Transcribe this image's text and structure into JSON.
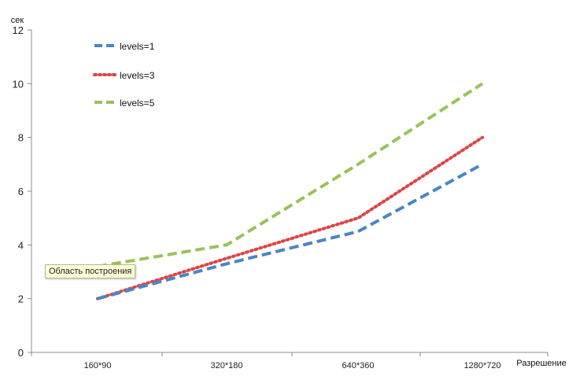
{
  "chart_data": {
    "type": "line",
    "title": "",
    "xlabel": "Разрешение",
    "ylabel": "сек",
    "categories": [
      "160*90",
      "320*180",
      "640*360",
      "1280*720"
    ],
    "ylim": [
      0,
      12
    ],
    "yticks": [
      0,
      2,
      4,
      6,
      8,
      10,
      12
    ],
    "grid": false,
    "legend_position": "top-left",
    "series": [
      {
        "name": "levels=1",
        "values": [
          2,
          3.3,
          4.5,
          7
        ],
        "color": "#4a86c5",
        "style": "dashed"
      },
      {
        "name": "levels=3",
        "values": [
          2,
          3.5,
          5,
          8
        ],
        "color": "#dd4444",
        "style": "dotted"
      },
      {
        "name": "levels=5",
        "values": [
          3.2,
          4,
          7,
          10
        ],
        "color": "#9bc25b",
        "style": "dashed"
      }
    ]
  },
  "tooltip": {
    "text": "Область построения"
  }
}
